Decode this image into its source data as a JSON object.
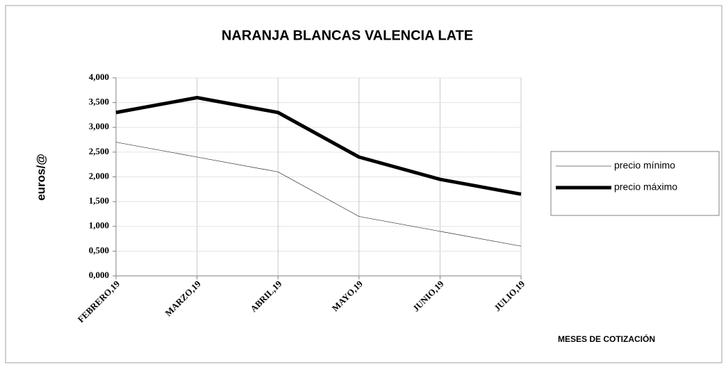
{
  "chart_data": {
    "type": "line",
    "title": "NARANJA  BLANCAS VALENCIA LATE",
    "y_label": "euros/@",
    "x_label": "MESES DE COTIZACIÓN",
    "categories": [
      "FEBRERO,19",
      "MARZO,19",
      "ABRIL,19",
      "MAYO,19",
      "JUNIO,19",
      "JULIO,19"
    ],
    "series": [
      {
        "name": "precio mínimo",
        "color": "#000000",
        "width": 0.6,
        "values": [
          2.7,
          2.4,
          2.1,
          1.2,
          0.9,
          0.6
        ]
      },
      {
        "name": "precio máximo",
        "color": "#000000",
        "width": 5,
        "values": [
          3.3,
          3.6,
          3.3,
          2.4,
          1.95,
          1.65
        ]
      }
    ],
    "ylim": [
      0,
      4
    ],
    "yticks": [
      {
        "value": 0,
        "label": "0,000"
      },
      {
        "value": 0.5,
        "label": "0,500"
      },
      {
        "value": 1,
        "label": "1,000"
      },
      {
        "value": 1.5,
        "label": "1,500"
      },
      {
        "value": 2,
        "label": "2,000"
      },
      {
        "value": 2.5,
        "label": "2,500"
      },
      {
        "value": 3,
        "label": "3,000"
      },
      {
        "value": 3.5,
        "label": "3,500"
      },
      {
        "value": 4,
        "label": "4,000"
      }
    ],
    "grid": true,
    "legend": "right"
  }
}
